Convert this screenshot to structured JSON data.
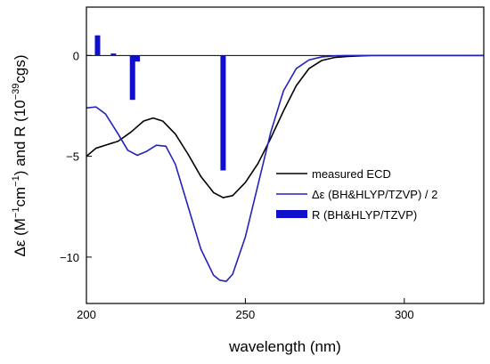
{
  "chart_data": {
    "type": "line",
    "xlabel": "wavelength (nm)",
    "ylabel_parts": [
      "Δε (M",
      "−1",
      "cm",
      "−1",
      ") and R (10",
      "−39",
      "cgs)"
    ],
    "xlim": [
      200,
      325
    ],
    "ylim": [
      -12.3,
      2.4
    ],
    "xticks": [
      200,
      250,
      300
    ],
    "xtick_labels": [
      "200",
      "250",
      "300"
    ],
    "yticks": [
      0,
      -5,
      -10
    ],
    "ytick_labels": [
      "0",
      "−5",
      "−10"
    ],
    "grid": false,
    "legend_position": "right-middle",
    "series": [
      {
        "name": "measured ECD",
        "kind": "line",
        "color": "#000000",
        "x": [
          200,
          203,
          206,
          210,
          214,
          218,
          221,
          224,
          228,
          232,
          236,
          240,
          243,
          246,
          250,
          254,
          258,
          262,
          266,
          270,
          274,
          278,
          282,
          286,
          290,
          300,
          325
        ],
        "y": [
          -5.0,
          -4.6,
          -4.45,
          -4.25,
          -3.8,
          -3.25,
          -3.1,
          -3.25,
          -3.9,
          -4.9,
          -6.0,
          -6.8,
          -7.05,
          -6.95,
          -6.3,
          -5.35,
          -4.1,
          -2.75,
          -1.5,
          -0.65,
          -0.25,
          -0.1,
          -0.05,
          -0.02,
          0.0,
          0.0,
          0.0
        ]
      },
      {
        "name": "Δε (BH&HLYP/TZVP) / 2",
        "kind": "line",
        "color": "#2222bb",
        "x": [
          200,
          203,
          206,
          210,
          213,
          216,
          219,
          222,
          225,
          228,
          232,
          236,
          240,
          242,
          244,
          246,
          250,
          254,
          258,
          262,
          266,
          270,
          274,
          278,
          282,
          290,
          300,
          325
        ],
        "y": [
          -2.6,
          -2.55,
          -2.9,
          -3.9,
          -4.7,
          -4.95,
          -4.75,
          -4.45,
          -4.5,
          -5.4,
          -7.5,
          -9.6,
          -10.9,
          -11.15,
          -11.2,
          -10.85,
          -9.0,
          -6.4,
          -3.8,
          -1.75,
          -0.65,
          -0.22,
          -0.07,
          -0.02,
          0.0,
          0.0,
          0.0,
          0.0
        ]
      },
      {
        "name": "R (BH&HLYP/TZVP)",
        "kind": "bar",
        "color": "#1010cc",
        "x": [
          203.5,
          208.5,
          214.5,
          216,
          243
        ],
        "y": [
          1.0,
          0.1,
          -2.2,
          -0.3,
          -5.7
        ]
      }
    ]
  }
}
